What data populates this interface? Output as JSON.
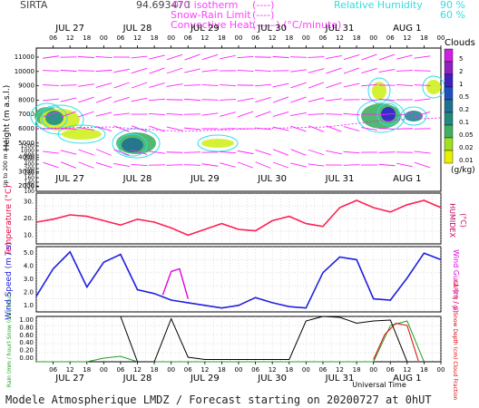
{
  "header": {
    "site": "SIRTA",
    "coord": "94.693470",
    "legend_left": [
      {
        "label": "0°C isotherm",
        "sample": "(----)"
      },
      {
        "label": "Snow-Rain Limit",
        "sample": "(----)"
      },
      {
        "label": "Convective Heat.",
        "sample": "(——) (°C/minute)"
      }
    ],
    "legend_right": [
      {
        "label": "Relative Humidity",
        "value": "90 %"
      },
      {
        "label": "",
        "value": "60 %"
      }
    ]
  },
  "footer": "Modele Atmospherique LMDZ / Forecast starting on 20200727 at 0hUT",
  "x_axis": {
    "days": [
      "JUL 27",
      "JUL 28",
      "JUL 29",
      "JUL 30",
      "JUL 31",
      "AUG 1"
    ],
    "hours": [
      "06",
      "12",
      "18",
      "00"
    ],
    "title": "Universal Time"
  },
  "colors": {
    "temperature": "#ff2050",
    "humidex": "#c00060",
    "wind": "#2020e0",
    "gust": "#e000e0",
    "isotherm": "#ff00ff",
    "rh": "#30e0e0",
    "cloud_scale": [
      "#ffff20",
      "#d0f020",
      "#80d040",
      "#40b060",
      "#20a080",
      "#208c90",
      "#2060c0",
      "#3020d0",
      "#8020d0",
      "#e020f0"
    ],
    "cloud_swatches": [
      "#e8f000",
      "#a0e020",
      "#40b060",
      "#208a80",
      "#207090",
      "#2050c0",
      "#4020c0",
      "#9020c0",
      "#d020e0"
    ]
  },
  "panels": {
    "clouds": {
      "ylabel": "Height (m a.s.l.)",
      "ylabel2": "Up to 200 m a.s.l.",
      "ticks": [
        "11000",
        "10000",
        "9000",
        "8000",
        "7000",
        "6000",
        "5000",
        "4000",
        "3000",
        "2000",
        "1500",
        "1000",
        "800",
        "600",
        "400",
        "200",
        "180",
        "160",
        "140",
        "120",
        "100"
      ],
      "colorbar_title": "Clouds",
      "colorbar_ticks": [
        "5",
        "2",
        "1",
        "0.5",
        "0.2",
        "0.1",
        "0.05",
        "0.02",
        "0.01"
      ],
      "colorbar_unit": "(g/kg)"
    },
    "temperature": {
      "ylabel": "Temperature (°C)",
      "ylabel2": "HUMIDEX",
      "unit2": "(°C)",
      "ticks": [
        "30.",
        "20.",
        "10."
      ]
    },
    "wind": {
      "ylabel": "Wind Speed (m / s)",
      "ylabel2": "Wind Gust (m / s)",
      "ticks": [
        "5.0",
        "4.0",
        "3.0",
        "2.0",
        "1.0"
      ]
    },
    "precip": {
      "ylabel": "Rain (mm / hour) Snow (cm / hour)",
      "ylabel2": "CAPE (J / g) Snow Depth (cm) Cloud Fraction",
      "ticks": [
        "1.00",
        "0.80",
        "0.60",
        "0.40",
        "0.20",
        "0.00"
      ]
    }
  },
  "chart_data": [
    {
      "type": "line",
      "title": "Temperature",
      "x_unit": "hours since JUL 27 00UT",
      "x": [
        0,
        6,
        12,
        18,
        24,
        30,
        36,
        42,
        48,
        54,
        60,
        66,
        72,
        78,
        84,
        90,
        96,
        102,
        108,
        114,
        120,
        126,
        132,
        138,
        144
      ],
      "series": [
        {
          "name": "Temperature",
          "values": [
            20,
            22,
            25,
            24,
            21,
            18,
            22,
            20,
            16,
            11,
            15,
            19,
            15,
            14,
            21,
            24,
            19,
            17,
            30,
            35,
            30,
            27,
            32,
            35,
            30
          ]
        }
      ],
      "ylim": [
        5,
        40
      ]
    },
    {
      "type": "line",
      "title": "Wind Speed",
      "x": [
        0,
        6,
        12,
        18,
        24,
        30,
        36,
        42,
        48,
        54,
        60,
        66,
        72,
        78,
        84,
        90,
        96,
        102,
        108,
        114,
        120,
        126,
        132,
        138,
        144
      ],
      "series": [
        {
          "name": "Wind Speed",
          "values": [
            1.7,
            3.8,
            5.1,
            2.4,
            4.3,
            4.9,
            2.2,
            1.9,
            1.4,
            1.2,
            1.0,
            0.8,
            1.0,
            1.6,
            1.2,
            0.9,
            0.8,
            3.5,
            4.7,
            4.5,
            1.5,
            1.4,
            3.1,
            5.0,
            4.5
          ]
        },
        {
          "name": "Wind Gust",
          "values": [
            null,
            null,
            null,
            null,
            null,
            null,
            null,
            null,
            4.0,
            1.5,
            null,
            null,
            null,
            null,
            null,
            null,
            null,
            null,
            null,
            null,
            null,
            null,
            null,
            null,
            null
          ]
        }
      ],
      "ylim": [
        0.5,
        5.5
      ]
    },
    {
      "type": "line",
      "title": "Cloud Fraction",
      "x": [
        0,
        6,
        12,
        18,
        24,
        30,
        36,
        42,
        48,
        54,
        60,
        66,
        72,
        78,
        84,
        90,
        96,
        102,
        108,
        114,
        120,
        126,
        132,
        138,
        144
      ],
      "series": [
        {
          "name": "Cloud Fraction",
          "values": [
            1.0,
            1.0,
            1.0,
            1.0,
            1.0,
            1.0,
            0.0,
            0.0,
            0.95,
            0.1,
            0.05,
            0.05,
            0.05,
            0.05,
            0.05,
            0.05,
            0.9,
            1.0,
            0.98,
            0.85,
            0.9,
            0.92,
            0.0,
            0.0,
            0.0
          ]
        },
        {
          "name": "Rain",
          "values": [
            0,
            0,
            0,
            0,
            0.08,
            0.12,
            0,
            0,
            0,
            0,
            0,
            0,
            0,
            0,
            0,
            0,
            0,
            0,
            0,
            0,
            0,
            0.8,
            0.9,
            0,
            0
          ]
        }
      ],
      "ylim": [
        0,
        1
      ]
    }
  ]
}
